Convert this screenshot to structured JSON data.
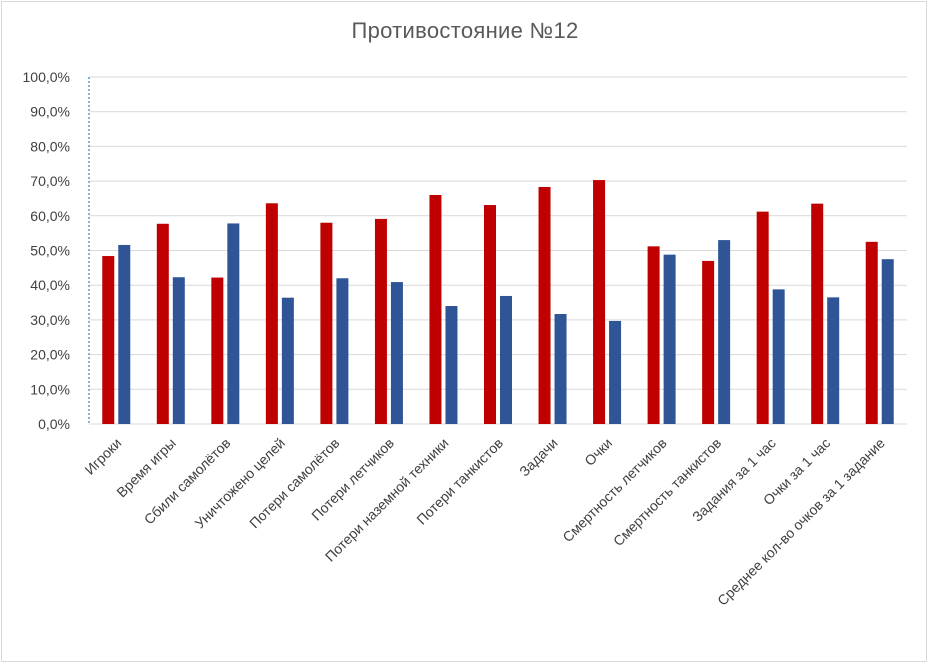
{
  "chart_data": {
    "type": "bar",
    "title": "Противостояние №12",
    "xlabel": "",
    "ylabel": "",
    "ylim": [
      0,
      100
    ],
    "grid": true,
    "legend": "none",
    "yticks": [
      "0,0%",
      "10,0%",
      "20,0%",
      "30,0%",
      "40,0%",
      "50,0%",
      "60,0%",
      "70,0%",
      "80,0%",
      "90,0%",
      "100,0%"
    ],
    "categories": [
      "Игроки",
      "Время игры",
      "Сбили самолётов",
      "Уничтожено целей",
      "Потери самолётов",
      "Потери летчиков",
      "Потери наземной техники",
      "Потери танкистов",
      "Задачи",
      "Очки",
      "Смертность летчиков",
      "Смертность танкистов",
      "Задания за 1 час",
      "Очки за 1 час",
      "Среднее кол-во очков за 1 задание"
    ],
    "series": [
      {
        "name": "red",
        "color": "#c00000",
        "values": [
          48.4,
          57.7,
          42.2,
          63.6,
          58.0,
          59.1,
          66.0,
          63.1,
          68.3,
          70.3,
          51.2,
          47.0,
          61.2,
          63.5,
          52.5
        ]
      },
      {
        "name": "blue",
        "color": "#2f5597",
        "values": [
          51.6,
          42.3,
          57.8,
          36.4,
          42.0,
          40.9,
          34.0,
          36.9,
          31.7,
          29.7,
          48.8,
          53.0,
          38.8,
          36.5,
          47.5
        ]
      }
    ]
  }
}
